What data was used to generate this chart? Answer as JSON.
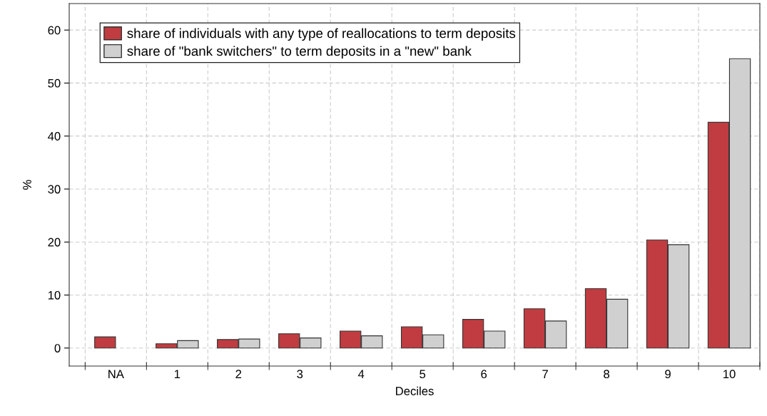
{
  "chart_data": {
    "type": "bar",
    "xlabel": "Deciles",
    "ylabel": "%",
    "categories": [
      "NA",
      "1",
      "2",
      "3",
      "4",
      "5",
      "6",
      "7",
      "8",
      "9",
      "10"
    ],
    "series": [
      {
        "name": "share of individuals with any type of reallocations to term deposits",
        "color": "#c03c40",
        "values": [
          2.1,
          0.8,
          1.6,
          2.7,
          3.2,
          4.0,
          5.4,
          7.4,
          11.2,
          20.4,
          42.6
        ]
      },
      {
        "name": "share of \"bank switchers\" to term deposits in a \"new\" bank",
        "color": "#d0d0d0",
        "values": [
          null,
          1.4,
          1.7,
          1.9,
          2.3,
          2.5,
          3.2,
          5.1,
          9.2,
          19.5,
          54.6
        ]
      }
    ],
    "ylim": [
      -3.4,
      65
    ],
    "yticks": [
      0,
      10,
      20,
      30,
      40,
      50,
      60
    ],
    "grid": true,
    "legend": "top left"
  }
}
